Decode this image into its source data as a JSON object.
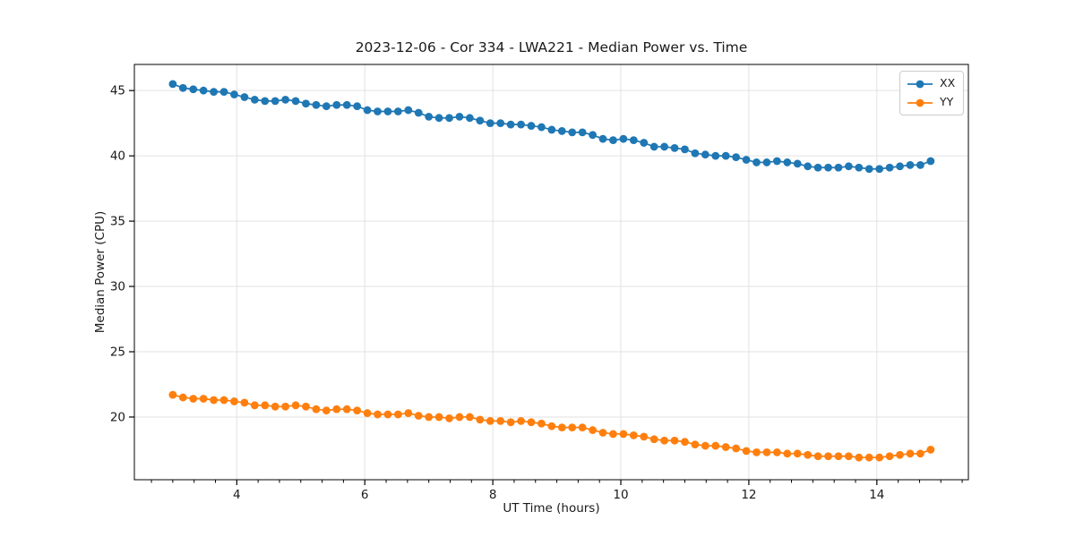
{
  "chart": {
    "title": "2023-12-06 - Cor 334 - LWA221 - Median Power vs. Time",
    "xlabel": "UT Time (hours)",
    "ylabel": "Median Power (CPU)"
  },
  "chart_data": {
    "type": "line",
    "title": "2023-12-06 - Cor 334 - LWA221 - Median Power vs. Time",
    "xlabel": "UT Time (hours)",
    "ylabel": "Median Power (CPU)",
    "xlim": [
      2.4,
      15.43
    ],
    "ylim": [
      15.2,
      47.0
    ],
    "xticks": [
      4,
      6,
      8,
      10,
      12,
      14
    ],
    "yticks": [
      20,
      25,
      30,
      35,
      40,
      45
    ],
    "x_minor_step": 0.33333,
    "grid": true,
    "grid_color": "#e2e2e2",
    "legend_position": "upper right",
    "x": [
      3.0,
      3.16,
      3.32,
      3.48,
      3.64,
      3.8,
      3.96,
      4.12,
      4.28,
      4.44,
      4.6,
      4.76,
      4.92,
      5.08,
      5.24,
      5.4,
      5.56,
      5.72,
      5.88,
      6.04,
      6.2,
      6.36,
      6.52,
      6.68,
      6.84,
      7.0,
      7.16,
      7.32,
      7.48,
      7.64,
      7.8,
      7.96,
      8.12,
      8.28,
      8.44,
      8.6,
      8.76,
      8.92,
      9.08,
      9.24,
      9.4,
      9.56,
      9.72,
      9.88,
      10.04,
      10.2,
      10.36,
      10.52,
      10.68,
      10.84,
      11.0,
      11.16,
      11.32,
      11.48,
      11.64,
      11.8,
      11.96,
      12.12,
      12.28,
      12.44,
      12.6,
      12.76,
      12.92,
      13.08,
      13.24,
      13.4,
      13.56,
      13.72,
      13.88,
      14.04,
      14.2,
      14.36,
      14.52,
      14.68,
      14.84
    ],
    "series": [
      {
        "name": "XX",
        "color": "#1f77b4",
        "values": [
          45.5,
          45.2,
          45.1,
          45.0,
          44.9,
          44.9,
          44.7,
          44.5,
          44.3,
          44.2,
          44.2,
          44.3,
          44.2,
          44.0,
          43.9,
          43.8,
          43.9,
          43.9,
          43.8,
          43.5,
          43.4,
          43.4,
          43.4,
          43.5,
          43.3,
          43.0,
          42.9,
          42.9,
          43.0,
          42.9,
          42.7,
          42.5,
          42.5,
          42.4,
          42.4,
          42.3,
          42.2,
          42.0,
          41.9,
          41.8,
          41.8,
          41.6,
          41.3,
          41.2,
          41.3,
          41.2,
          41.0,
          40.7,
          40.7,
          40.6,
          40.5,
          40.2,
          40.1,
          40.0,
          40.0,
          39.9,
          39.7,
          39.5,
          39.5,
          39.6,
          39.5,
          39.4,
          39.2,
          39.1,
          39.1,
          39.1,
          39.2,
          39.1,
          39.0,
          39.0,
          39.1,
          39.2,
          39.3,
          39.3,
          39.6
        ]
      },
      {
        "name": "YY",
        "color": "#ff7f0e",
        "values": [
          21.7,
          21.5,
          21.4,
          21.4,
          21.3,
          21.3,
          21.2,
          21.1,
          20.9,
          20.9,
          20.8,
          20.8,
          20.9,
          20.8,
          20.6,
          20.5,
          20.6,
          20.6,
          20.5,
          20.3,
          20.2,
          20.2,
          20.2,
          20.3,
          20.1,
          20.0,
          20.0,
          19.9,
          20.0,
          20.0,
          19.8,
          19.7,
          19.7,
          19.6,
          19.7,
          19.6,
          19.5,
          19.3,
          19.2,
          19.2,
          19.2,
          19.0,
          18.8,
          18.7,
          18.7,
          18.6,
          18.5,
          18.3,
          18.2,
          18.2,
          18.1,
          17.9,
          17.8,
          17.8,
          17.7,
          17.6,
          17.4,
          17.3,
          17.3,
          17.3,
          17.2,
          17.2,
          17.1,
          17.0,
          17.0,
          17.0,
          17.0,
          16.9,
          16.9,
          16.9,
          17.0,
          17.1,
          17.2,
          17.2,
          17.5
        ]
      }
    ]
  }
}
